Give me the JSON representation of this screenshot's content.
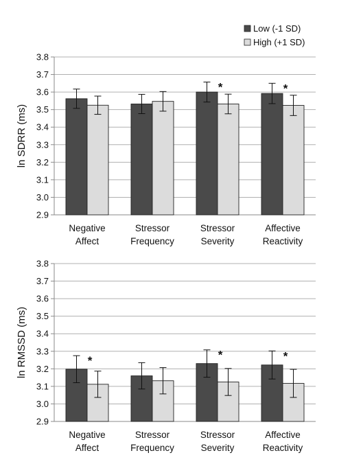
{
  "legend": {
    "low_label": "Low (-1 SD)",
    "high_label": "High (+1 SD)",
    "low_color": "#4a4a4a",
    "high_color": "#dcdcdc"
  },
  "chart_data": [
    {
      "type": "bar",
      "ylabel": "ln SDRR (ms)",
      "ylim": [
        2.9,
        3.8
      ],
      "yticks": [
        "2.9",
        "3.0",
        "3.1",
        "3.2",
        "3.3",
        "3.4",
        "3.5",
        "3.6",
        "3.7",
        "3.8"
      ],
      "grid": true,
      "categories": [
        [
          "Negative",
          "Affect"
        ],
        [
          "Stressor",
          "Frequency"
        ],
        [
          "Stressor",
          "Severity"
        ],
        [
          "Affective",
          "Reactivity"
        ]
      ],
      "series": [
        {
          "name": "Low (-1 SD)",
          "values": [
            3.562,
            3.532,
            3.6,
            3.592
          ],
          "err": [
            0.055,
            0.055,
            0.057,
            0.058
          ]
        },
        {
          "name": "High (+1 SD)",
          "values": [
            3.525,
            3.547,
            3.532,
            3.524
          ],
          "err": [
            0.052,
            0.056,
            0.056,
            0.058
          ]
        }
      ],
      "significance": [
        false,
        false,
        true,
        true
      ],
      "sig_marker": "*"
    },
    {
      "type": "bar",
      "ylabel": "ln RMSSD (ms)",
      "ylim": [
        2.9,
        3.8
      ],
      "yticks": [
        "2.9",
        "3.0",
        "3.1",
        "3.2",
        "3.3",
        "3.4",
        "3.5",
        "3.6",
        "3.7",
        "3.8"
      ],
      "grid": true,
      "categories": [
        [
          "Negative",
          "Affect"
        ],
        [
          "Stressor",
          "Frequency"
        ],
        [
          "Stressor",
          "Severity"
        ],
        [
          "Affective",
          "Reactivity"
        ]
      ],
      "series": [
        {
          "name": "Low (-1 SD)",
          "values": [
            3.198,
            3.16,
            3.23,
            3.222
          ],
          "err": [
            0.077,
            0.075,
            0.078,
            0.08
          ]
        },
        {
          "name": "High (+1 SD)",
          "values": [
            3.112,
            3.132,
            3.125,
            3.117
          ],
          "err": [
            0.075,
            0.075,
            0.077,
            0.08
          ]
        }
      ],
      "significance": [
        true,
        false,
        true,
        true
      ],
      "sig_marker": "*"
    }
  ]
}
